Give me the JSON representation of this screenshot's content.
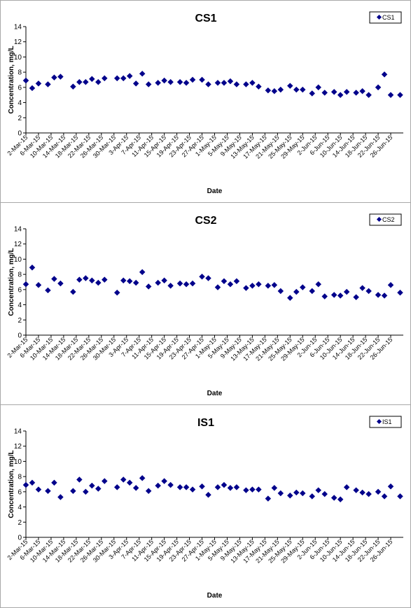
{
  "colors": {
    "marker": "#00008b",
    "axis": "#000000",
    "panel_border": "#a8a8a8"
  },
  "chart_data": [
    {
      "type": "scatter",
      "title": "CS1",
      "xlabel": "Date",
      "ylabel": "Concentration, mg/L",
      "ylim": [
        0,
        14
      ],
      "yticks": [
        0,
        2,
        4,
        6,
        8,
        10,
        12,
        14
      ],
      "xlim": [
        "2015-03-02",
        "2015-06-30"
      ],
      "xticks": [
        "2-Mar-15",
        "6-Mar-15",
        "10-Mar-15",
        "14-Mar-15",
        "18-Mar-15",
        "22-Mar-15",
        "26-Mar-15",
        "30-Mar-15",
        "3-Apr-15",
        "7-Apr-15",
        "11-Apr-15",
        "15-Apr-15",
        "19-Apr-15",
        "23-Apr-15",
        "27-Apr-15",
        "1-May-15",
        "5-May-15",
        "9-May-15",
        "13-May-15",
        "17-May-15",
        "21-May-15",
        "25-May-15",
        "29-May-15",
        "2-Jun-15",
        "6-Jun-15",
        "10-Jun-15",
        "14-Jun-15",
        "18-Jun-15",
        "22-Jun-15",
        "26-Jun-15"
      ],
      "grid": false,
      "legend": "top-right",
      "series": [
        {
          "name": "CS1",
          "x": [
            "2015-03-02",
            "2015-03-04",
            "2015-03-06",
            "2015-03-09",
            "2015-03-11",
            "2015-03-13",
            "2015-03-17",
            "2015-03-19",
            "2015-03-21",
            "2015-03-23",
            "2015-03-25",
            "2015-03-27",
            "2015-03-31",
            "2015-04-02",
            "2015-04-04",
            "2015-04-06",
            "2015-04-08",
            "2015-04-10",
            "2015-04-13",
            "2015-04-15",
            "2015-04-17",
            "2015-04-20",
            "2015-04-22",
            "2015-04-24",
            "2015-04-27",
            "2015-04-29",
            "2015-05-02",
            "2015-05-04",
            "2015-05-06",
            "2015-05-08",
            "2015-05-11",
            "2015-05-13",
            "2015-05-15",
            "2015-05-18",
            "2015-05-20",
            "2015-05-22",
            "2015-05-25",
            "2015-05-27",
            "2015-05-29",
            "2015-06-01",
            "2015-06-03",
            "2015-06-05",
            "2015-06-08",
            "2015-06-10",
            "2015-06-12",
            "2015-06-15",
            "2015-06-17",
            "2015-06-19",
            "2015-06-22",
            "2015-06-24",
            "2015-06-26",
            "2015-06-29"
          ],
          "y": [
            6.9,
            5.9,
            6.5,
            6.4,
            7.3,
            7.4,
            6.1,
            6.7,
            6.7,
            7.1,
            6.7,
            7.2,
            7.2,
            7.2,
            7.5,
            6.5,
            7.8,
            6.4,
            6.6,
            6.9,
            6.7,
            6.7,
            6.6,
            7.0,
            7.0,
            6.4,
            6.6,
            6.6,
            6.8,
            6.4,
            6.4,
            6.6,
            6.1,
            5.6,
            5.5,
            5.7,
            6.2,
            5.7,
            5.7,
            5.2,
            6.0,
            5.3,
            5.4,
            5.0,
            5.4,
            5.3,
            5.5,
            5.0,
            6.0,
            7.7,
            5.0,
            5.0
          ]
        }
      ]
    },
    {
      "type": "scatter",
      "title": "CS2",
      "xlabel": "Date",
      "ylabel": "Concentration, mg/L",
      "ylim": [
        0,
        14
      ],
      "yticks": [
        0,
        2,
        4,
        6,
        8,
        10,
        12,
        14
      ],
      "xlim": [
        "2015-03-02",
        "2015-06-30"
      ],
      "xticks": [
        "2-Mar-15",
        "6-Mar-15",
        "10-Mar-15",
        "14-Mar-15",
        "18-Mar-15",
        "22-Mar-15",
        "26-Mar-15",
        "30-Mar-15",
        "3-Apr-15",
        "7-Apr-15",
        "11-Apr-15",
        "15-Apr-15",
        "19-Apr-15",
        "23-Apr-15",
        "27-Apr-15",
        "1-May-15",
        "5-May-15",
        "9-May-15",
        "13-May-15",
        "17-May-15",
        "21-May-15",
        "25-May-15",
        "29-May-15",
        "2-Jun-15",
        "6-Jun-15",
        "10-Jun-15",
        "14-Jun-15",
        "18-Jun-15",
        "22-Jun-15",
        "26-Jun-15"
      ],
      "grid": false,
      "legend": "top-right",
      "series": [
        {
          "name": "CS2",
          "x": [
            "2015-03-02",
            "2015-03-04",
            "2015-03-06",
            "2015-03-09",
            "2015-03-11",
            "2015-03-13",
            "2015-03-17",
            "2015-03-19",
            "2015-03-21",
            "2015-03-23",
            "2015-03-25",
            "2015-03-27",
            "2015-03-31",
            "2015-04-02",
            "2015-04-04",
            "2015-04-06",
            "2015-04-08",
            "2015-04-10",
            "2015-04-13",
            "2015-04-15",
            "2015-04-17",
            "2015-04-20",
            "2015-04-22",
            "2015-04-24",
            "2015-04-27",
            "2015-04-29",
            "2015-05-02",
            "2015-05-04",
            "2015-05-06",
            "2015-05-08",
            "2015-05-11",
            "2015-05-13",
            "2015-05-15",
            "2015-05-18",
            "2015-05-20",
            "2015-05-22",
            "2015-05-25",
            "2015-05-27",
            "2015-05-29",
            "2015-06-01",
            "2015-06-03",
            "2015-06-05",
            "2015-06-08",
            "2015-06-10",
            "2015-06-12",
            "2015-06-15",
            "2015-06-17",
            "2015-06-19",
            "2015-06-22",
            "2015-06-24",
            "2015-06-26",
            "2015-06-29"
          ],
          "y": [
            6.7,
            8.9,
            6.6,
            5.9,
            7.4,
            6.8,
            5.7,
            7.3,
            7.5,
            7.2,
            6.9,
            7.3,
            5.6,
            7.2,
            7.1,
            6.9,
            8.3,
            6.4,
            6.9,
            7.2,
            6.5,
            6.8,
            6.7,
            6.8,
            7.7,
            7.5,
            6.3,
            7.1,
            6.7,
            7.1,
            6.2,
            6.5,
            6.7,
            6.5,
            6.6,
            5.8,
            4.9,
            5.7,
            6.3,
            5.8,
            6.7,
            5.1,
            5.3,
            5.2,
            5.7,
            5.0,
            6.2,
            5.8,
            5.3,
            5.2,
            6.6,
            5.6
          ]
        }
      ]
    },
    {
      "type": "scatter",
      "title": "IS1",
      "xlabel": "Date",
      "ylabel": "Concentration, mg/L",
      "ylim": [
        0,
        14
      ],
      "yticks": [
        0,
        2,
        4,
        6,
        8,
        10,
        12,
        14
      ],
      "xlim": [
        "2015-03-02",
        "2015-06-30"
      ],
      "xticks": [
        "2-Mar-15",
        "6-Mar-15",
        "10-Mar-15",
        "14-Mar-15",
        "18-Mar-15",
        "22-Mar-15",
        "26-Mar-15",
        "30-Mar-15",
        "3-Apr-15",
        "7-Apr-15",
        "11-Apr-15",
        "15-Apr-15",
        "19-Apr-15",
        "23-Apr-15",
        "27-Apr-15",
        "1-May-15",
        "5-May-15",
        "9-May-15",
        "13-May-15",
        "17-May-15",
        "21-May-15",
        "25-May-15",
        "29-May-15",
        "2-Jun-15",
        "6-Jun-15",
        "10-Jun-15",
        "14-Jun-15",
        "18-Jun-15",
        "22-Jun-15",
        "26-Jun-15"
      ],
      "grid": false,
      "legend": "top-right",
      "series": [
        {
          "name": "IS1",
          "x": [
            "2015-03-02",
            "2015-03-04",
            "2015-03-06",
            "2015-03-09",
            "2015-03-11",
            "2015-03-13",
            "2015-03-17",
            "2015-03-19",
            "2015-03-21",
            "2015-03-23",
            "2015-03-25",
            "2015-03-27",
            "2015-03-31",
            "2015-04-02",
            "2015-04-04",
            "2015-04-06",
            "2015-04-08",
            "2015-04-10",
            "2015-04-13",
            "2015-04-15",
            "2015-04-17",
            "2015-04-20",
            "2015-04-22",
            "2015-04-24",
            "2015-04-27",
            "2015-04-29",
            "2015-05-02",
            "2015-05-04",
            "2015-05-06",
            "2015-05-08",
            "2015-05-11",
            "2015-05-13",
            "2015-05-15",
            "2015-05-18",
            "2015-05-20",
            "2015-05-22",
            "2015-05-25",
            "2015-05-27",
            "2015-05-29",
            "2015-06-01",
            "2015-06-03",
            "2015-06-05",
            "2015-06-08",
            "2015-06-10",
            "2015-06-12",
            "2015-06-15",
            "2015-06-17",
            "2015-06-19",
            "2015-06-22",
            "2015-06-24",
            "2015-06-26",
            "2015-06-29"
          ],
          "y": [
            6.9,
            7.2,
            6.3,
            6.1,
            7.2,
            5.3,
            6.1,
            7.6,
            6.0,
            6.8,
            6.4,
            7.4,
            6.6,
            7.6,
            7.2,
            6.5,
            7.8,
            6.1,
            6.8,
            7.4,
            6.9,
            6.6,
            6.6,
            6.3,
            6.7,
            5.6,
            6.6,
            6.9,
            6.5,
            6.6,
            6.2,
            6.3,
            6.3,
            5.1,
            6.5,
            5.8,
            5.5,
            5.9,
            5.8,
            5.4,
            6.2,
            5.7,
            5.2,
            5.0,
            6.6,
            6.2,
            5.9,
            5.7,
            6.0,
            5.4,
            6.7,
            5.4
          ]
        }
      ]
    }
  ]
}
